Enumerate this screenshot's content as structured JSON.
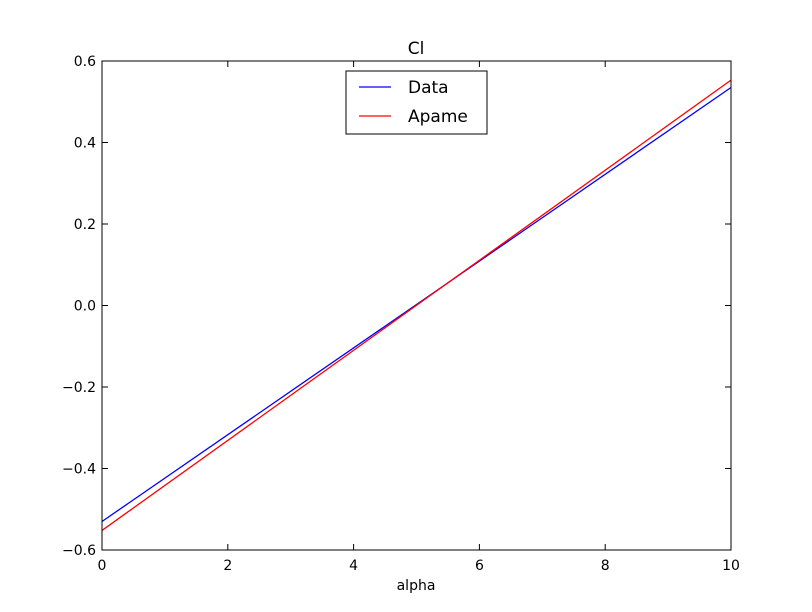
{
  "chart_data": {
    "type": "line",
    "title": "Cl",
    "xlabel": "alpha",
    "ylabel": "",
    "xlim": [
      0,
      10
    ],
    "ylim": [
      -0.6,
      0.6
    ],
    "xticks": [
      "0",
      "2",
      "4",
      "6",
      "8",
      "10"
    ],
    "yticks": [
      "−0.6",
      "−0.4",
      "−0.2",
      "0.0",
      "0.2",
      "0.4",
      "0.6"
    ],
    "grid": false,
    "legend_position": "top-center",
    "series": [
      {
        "name": "Data",
        "color": "#0000ff",
        "x": [
          0,
          10
        ],
        "y": [
          -0.53,
          0.535
        ]
      },
      {
        "name": "Apame",
        "color": "#ff0000",
        "x": [
          0,
          10
        ],
        "y": [
          -0.552,
          0.553
        ]
      }
    ]
  }
}
